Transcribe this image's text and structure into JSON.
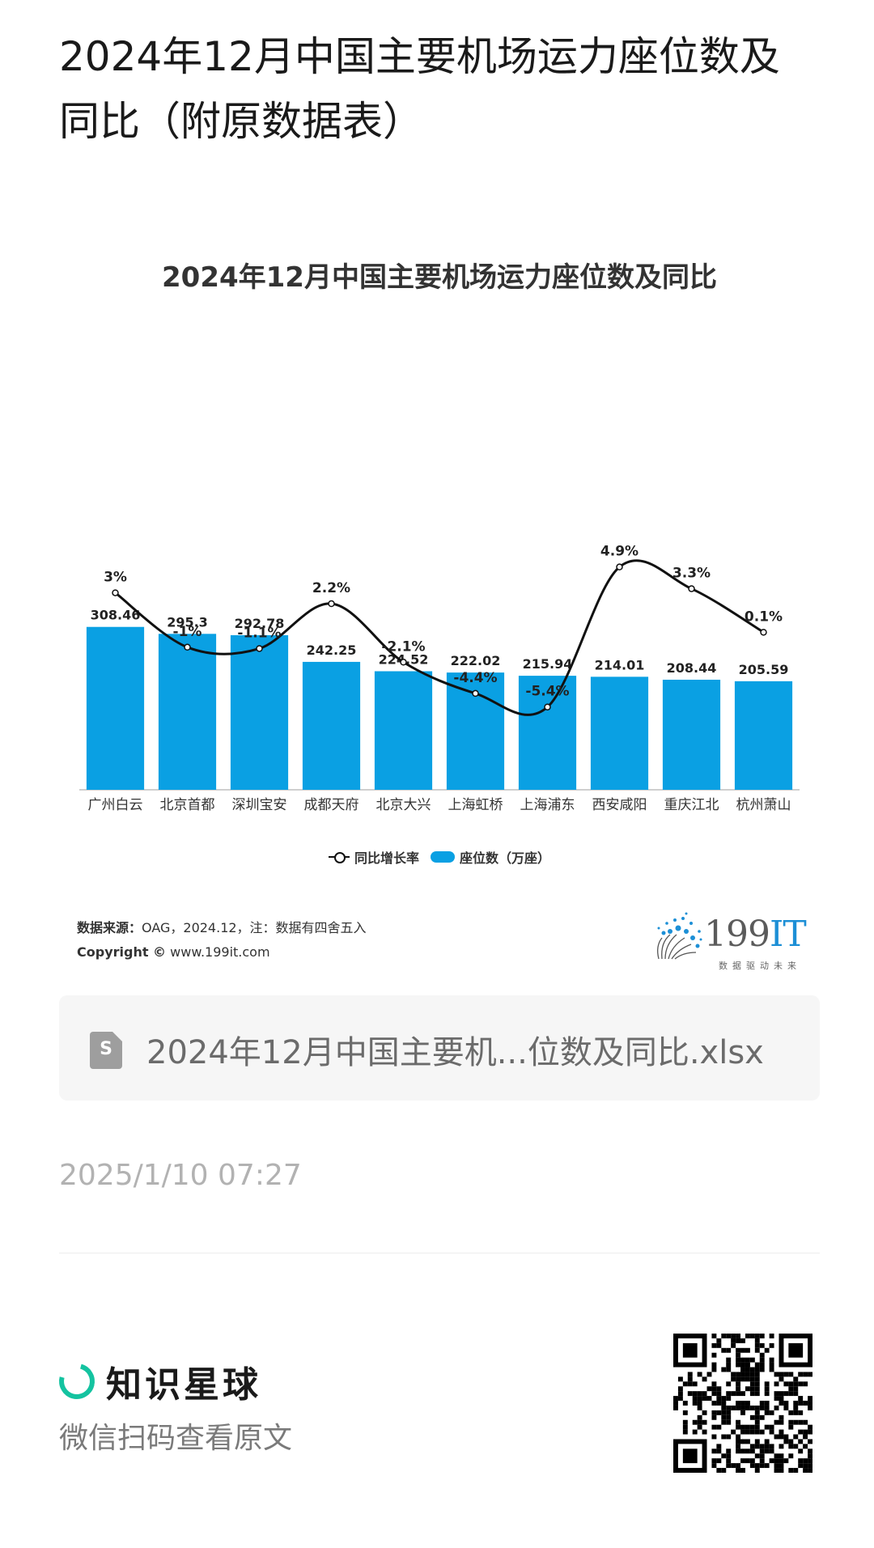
{
  "page": {
    "title": "2024年12月中国主要机场运力座位数及同比（附原数据表）"
  },
  "chart_data": {
    "type": "bar",
    "title": "2024年12月中国主要机场运力座位数及同比",
    "categories": [
      "广州白云",
      "北京首都",
      "深圳宝安",
      "成都天府",
      "北京大兴",
      "上海虹桥",
      "上海浦东",
      "西安咸阳",
      "重庆江北",
      "杭州萧山"
    ],
    "series": [
      {
        "name": "座位数（万座）",
        "type": "bar",
        "color": "#0aa0e3",
        "values": [
          308.46,
          295.3,
          292.78,
          242.25,
          224.52,
          222.02,
          215.94,
          214.01,
          208.44,
          205.59
        ],
        "labels": [
          "308.46",
          "295.3",
          "292.78",
          "242.25",
          "224.52",
          "222.02",
          "215.94",
          "214.01",
          "208.44",
          "205.59"
        ]
      },
      {
        "name": "同比增长率",
        "type": "line",
        "color": "#111111",
        "values": [
          3,
          -1,
          -1.1,
          2.2,
          -2.1,
          -4.4,
          -5.4,
          4.9,
          3.3,
          0.1
        ],
        "labels": [
          "3%",
          "-1%",
          "-1.1%",
          "2.2%",
          "-2.1%",
          "-4.4%",
          "-5.4%",
          "4.9%",
          "3.3%",
          "0.1%"
        ]
      }
    ],
    "legend": [
      "同比增长率",
      "座位数（万座）"
    ],
    "legend_position": "bottom",
    "grid": false
  },
  "source": {
    "label": "数据来源：",
    "text": "OAG，2024.12，注：数据有四舍五入",
    "copyright_label": "Copyright ©",
    "copyright_url": "www.199it.com"
  },
  "brand": {
    "number": "199",
    "suffix": "IT",
    "slogan": "数据驱动未来"
  },
  "file": {
    "icon_letter": "S",
    "name": "2024年12月中国主要机...位数及同比.xlsx"
  },
  "timestamp": "2025/1/10 07:27",
  "footer": {
    "logo_text": "知识星球",
    "hint": "微信扫码查看原文"
  }
}
